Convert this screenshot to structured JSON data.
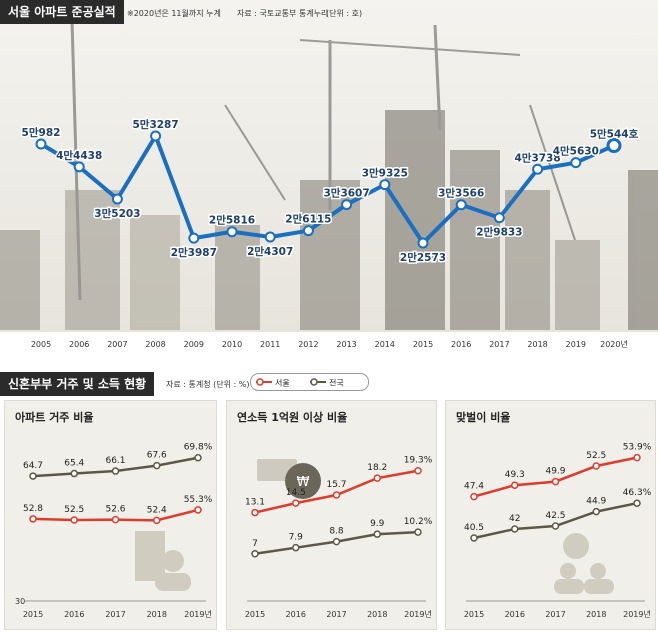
{
  "header": {
    "title": "서울 아파트 준공실적",
    "note": "※2020년은 11월까지 누계",
    "source": "자료 : 국토교통부 통계누리",
    "unit": "(단위 : 호)"
  },
  "section2": {
    "title": "신혼부부 거주 및 소득 현황",
    "source": "자료 : 통계청 (단위 : %)",
    "legend_seoul": "서울",
    "legend_national": "전국"
  },
  "colors": {
    "accent_blue": "#1a6fc0",
    "seoul_red": "#e03a2b",
    "national_dark": "#5c5747"
  },
  "chart_data": [
    {
      "type": "line",
      "title": "서울 아파트 준공실적",
      "x": [
        "2005",
        "2006",
        "2007",
        "2008",
        "2009",
        "2010",
        "2011",
        "2012",
        "2013",
        "2014",
        "2015",
        "2016",
        "2017",
        "2018",
        "2019",
        "2020년"
      ],
      "values": [
        50982,
        44438,
        35203,
        53287,
        23987,
        25816,
        24307,
        26115,
        33607,
        39325,
        22573,
        33566,
        29833,
        43738,
        45630,
        50544
      ],
      "labels": [
        "5만982",
        "4만4438",
        "3만5203",
        "5만3287",
        "2만3987",
        "2만5816",
        "2만4307",
        "2만6115",
        "3만3607",
        "3만9325",
        "2만2573",
        "3만3566",
        "2만9833",
        "4만3738",
        "4만5630",
        "5만544호"
      ]
    },
    {
      "type": "line",
      "title": "아파트 거주 비율",
      "x": [
        "2015",
        "2016",
        "2017",
        "2018",
        "2019년"
      ],
      "series": [
        {
          "name": "전국",
          "values": [
            64.7,
            65.4,
            66.1,
            67.6,
            69.8
          ],
          "labels": [
            "64.7",
            "65.4",
            "66.1",
            "67.6",
            "69.8%"
          ]
        },
        {
          "name": "서울",
          "values": [
            52.8,
            52.5,
            52.6,
            52.4,
            55.3
          ],
          "labels": [
            "52.8",
            "52.5",
            "52.6",
            "52.4",
            "55.3%"
          ]
        }
      ],
      "ylim": [
        30,
        75
      ],
      "y_tick": "30"
    },
    {
      "type": "line",
      "title": "연소득 1억원 이상 비율",
      "x": [
        "2015",
        "2016",
        "2017",
        "2018",
        "2019년"
      ],
      "series": [
        {
          "name": "서울",
          "values": [
            13.1,
            14.5,
            15.7,
            18.2,
            19.3
          ],
          "labels": [
            "13.1",
            "14.5",
            "15.7",
            "18.2",
            "19.3%"
          ]
        },
        {
          "name": "전국",
          "values": [
            7,
            7.9,
            8.8,
            9.9,
            10.2
          ],
          "labels": [
            "7",
            "7.9",
            "8.8",
            "9.9",
            "10.2%"
          ]
        }
      ],
      "ylim": [
        0,
        24
      ]
    },
    {
      "type": "line",
      "title": "맞벌이 비율",
      "x": [
        "2015",
        "2016",
        "2017",
        "2018",
        "2019년"
      ],
      "series": [
        {
          "name": "서울",
          "values": [
            47.4,
            49.3,
            49.9,
            52.5,
            53.9
          ],
          "labels": [
            "47.4",
            "49.3",
            "49.9",
            "52.5",
            "53.9%"
          ]
        },
        {
          "name": "전국",
          "values": [
            40.5,
            42,
            42.5,
            44.9,
            46.3
          ],
          "labels": [
            "40.5",
            "42",
            "42.5",
            "44.9",
            "46.3%"
          ]
        }
      ],
      "ylim": [
        30,
        57
      ]
    }
  ]
}
